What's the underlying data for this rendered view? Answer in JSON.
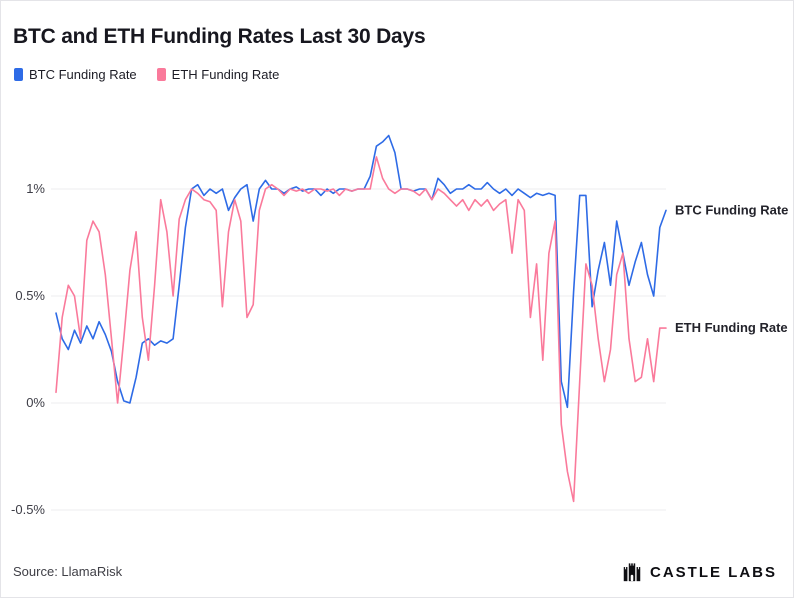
{
  "header": {
    "title": "BTC and ETH Funding Rates Last 30 Days"
  },
  "footer": {
    "source": "Source: LlamaRisk",
    "brand": "CASTLE LABS"
  },
  "chart_data": {
    "type": "line",
    "title": "BTC and ETH Funding Rates Last 30 Days",
    "xlabel": "",
    "ylabel": "",
    "x_description": "time, last 30 days (no visible x tick labels)",
    "unit": "percent",
    "ylim": [
      -0.6,
      1.35
    ],
    "grid": "horizontal",
    "legend_position": "top-left",
    "yticks": [
      {
        "value": 1,
        "label": "1%"
      },
      {
        "value": 0.5,
        "label": "0.5%"
      },
      {
        "value": 0,
        "label": "0%"
      },
      {
        "value": -0.5,
        "label": "-0.5%"
      }
    ],
    "series": [
      {
        "name": "BTC Funding Rate",
        "color": "#2e6be6",
        "end_label": "BTC Funding Rate",
        "values": [
          0.42,
          0.3,
          0.25,
          0.34,
          0.28,
          0.36,
          0.3,
          0.38,
          0.32,
          0.24,
          0.1,
          0.01,
          0.0,
          0.12,
          0.28,
          0.3,
          0.27,
          0.29,
          0.28,
          0.3,
          0.55,
          0.82,
          1.0,
          1.02,
          0.97,
          1.0,
          0.98,
          1.0,
          0.9,
          0.96,
          1.0,
          1.02,
          0.85,
          1.0,
          1.04,
          1.0,
          1.0,
          0.98,
          1.0,
          1.01,
          0.99,
          1.0,
          1.0,
          0.97,
          1.0,
          0.98,
          1.0,
          1.0,
          0.99,
          1.0,
          1.0,
          1.06,
          1.2,
          1.22,
          1.25,
          1.17,
          1.0,
          1.0,
          0.99,
          1.0,
          1.0,
          0.95,
          1.05,
          1.02,
          0.98,
          1.0,
          1.0,
          1.02,
          1.0,
          1.0,
          1.03,
          1.0,
          0.98,
          1.0,
          0.97,
          1.0,
          0.98,
          0.96,
          0.98,
          0.97,
          0.98,
          0.97,
          0.1,
          -0.02,
          0.52,
          0.97,
          0.97,
          0.45,
          0.62,
          0.75,
          0.55,
          0.85,
          0.7,
          0.55,
          0.66,
          0.75,
          0.6,
          0.5,
          0.82,
          0.9
        ]
      },
      {
        "name": "ETH Funding Rate",
        "color": "#fa7a9b",
        "end_label": "ETH Funding Rate",
        "values": [
          0.05,
          0.4,
          0.55,
          0.5,
          0.3,
          0.76,
          0.85,
          0.8,
          0.6,
          0.3,
          0.0,
          0.3,
          0.62,
          0.8,
          0.4,
          0.2,
          0.55,
          0.95,
          0.8,
          0.5,
          0.86,
          0.95,
          1.0,
          0.98,
          0.95,
          0.94,
          0.9,
          0.45,
          0.8,
          0.95,
          0.85,
          0.4,
          0.46,
          0.9,
          1.0,
          1.02,
          1.0,
          0.97,
          1.0,
          0.99,
          1.0,
          0.98,
          1.0,
          1.0,
          0.99,
          1.0,
          0.97,
          1.0,
          0.99,
          1.0,
          1.0,
          1.0,
          1.15,
          1.05,
          1.0,
          0.98,
          1.0,
          1.0,
          0.99,
          0.97,
          1.0,
          0.95,
          1.0,
          0.98,
          0.95,
          0.92,
          0.95,
          0.9,
          0.95,
          0.92,
          0.95,
          0.9,
          0.93,
          0.95,
          0.7,
          0.95,
          0.9,
          0.4,
          0.65,
          0.2,
          0.7,
          0.85,
          -0.1,
          -0.32,
          -0.46,
          0.1,
          0.65,
          0.55,
          0.3,
          0.1,
          0.25,
          0.6,
          0.7,
          0.3,
          0.1,
          0.12,
          0.3,
          0.1,
          0.35,
          0.35
        ]
      }
    ]
  }
}
